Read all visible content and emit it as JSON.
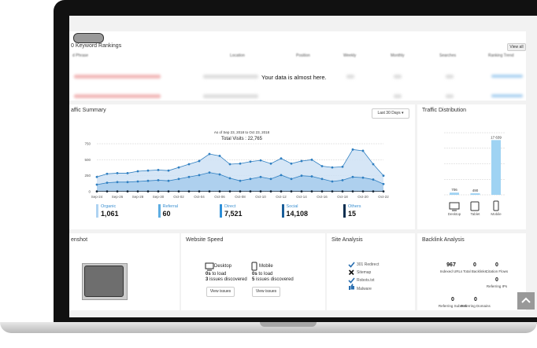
{
  "keyword_rankings": {
    "title": "0 Keyword Rankings",
    "view_all": "View all",
    "columns": [
      "d Phrase",
      "Location",
      "Position",
      "Weekly",
      "Monthly",
      "Searches",
      "Ranking Trend"
    ],
    "message": "Your data is almost here."
  },
  "traffic_summary": {
    "title": "affic Summary",
    "range": "Last 30 Days",
    "chart": {
      "type": "area",
      "subtitle": "As of Sep 23, 2018 to Oct 23, 2018",
      "title": "Total Visits : 22,765",
      "categories": [
        "Sep-24",
        null,
        "Sep-26",
        null,
        "Sep-28",
        null,
        "Sep-30",
        null,
        "Oct-02",
        null,
        "Oct-04",
        null,
        "Oct-06",
        null,
        "Oct-08",
        null,
        "Oct-10",
        null,
        "Oct-12",
        null,
        "Oct-14",
        null,
        "Oct-16",
        null,
        "Oct-18",
        null,
        "Oct-20",
        null,
        "Oct-22"
      ],
      "series": [
        {
          "color": "#2f7fc1",
          "values": [
            230,
            280,
            290,
            290,
            320,
            330,
            340,
            330,
            380,
            430,
            480,
            590,
            560,
            430,
            440,
            470,
            490,
            440,
            520,
            440,
            480,
            500,
            400,
            380,
            390,
            660,
            640,
            430,
            250
          ]
        },
        {
          "color": "#2f7fc1",
          "values": [
            110,
            140,
            150,
            150,
            160,
            170,
            180,
            170,
            200,
            230,
            260,
            300,
            270,
            210,
            170,
            200,
            230,
            200,
            260,
            200,
            250,
            240,
            200,
            160,
            180,
            230,
            220,
            190,
            120
          ]
        },
        {
          "color": "#1b2a3a",
          "values": [
            5,
            5,
            5,
            5,
            5,
            5,
            5,
            5,
            5,
            5,
            5,
            5,
            5,
            5,
            5,
            5,
            5,
            5,
            5,
            5,
            5,
            5,
            5,
            5,
            5,
            5,
            5,
            5,
            5
          ]
        }
      ],
      "ylim": [
        0,
        750
      ],
      "yticks": [
        0,
        250,
        500,
        750
      ],
      "grid": true
    },
    "legend": [
      {
        "name": "Organic",
        "value": "1,061",
        "color": "#aed3f2"
      },
      {
        "name": "Referral",
        "value": "60",
        "color": "#5dade2"
      },
      {
        "name": "Direct",
        "value": "7,521",
        "color": "#2d8fd8"
      },
      {
        "name": "Social",
        "value": "14,108",
        "color": "#1a5e99"
      },
      {
        "name": "Others",
        "value": "15",
        "color": "#0b2e4f"
      }
    ]
  },
  "traffic_distribution": {
    "title": "Traffic Distribution",
    "chart": {
      "type": "bar",
      "categories": [
        "Desktop",
        "Tablet",
        "Mobile"
      ],
      "values": [
        706,
        490,
        17639
      ],
      "value_labels": [
        "706",
        "490",
        "17 639"
      ],
      "color": "#9fd3f3",
      "ylim": [
        0,
        20000
      ],
      "yticks": [
        0,
        5000,
        10000,
        15000,
        20000
      ],
      "grid": true
    }
  },
  "screenshot": {
    "title": "enshot"
  },
  "website_speed": {
    "title": "Website Speed",
    "button": "View issues",
    "devices": [
      {
        "name": "Desktop",
        "load": "0s",
        "load_text": "to load",
        "issues": "3",
        "issues_text": "issues discovered"
      },
      {
        "name": "Mobile",
        "load": "0s",
        "load_text": "to load",
        "issues": "5",
        "issues_text": "issues discovered"
      }
    ]
  },
  "site_analysis": {
    "title": "Site Analysis",
    "items": [
      "301 Redirect",
      "Sitemap",
      "Robots.txt",
      "Malware"
    ]
  },
  "backlink_analysis": {
    "title": "Backlink Analysis",
    "metrics": [
      {
        "value": "967",
        "label": "Indexed URLs"
      },
      {
        "value": "0",
        "label": "Total Backlinks"
      },
      {
        "value": "0",
        "label": "Citation Flows"
      },
      {
        "value": "0",
        "label": "Referring IPs"
      },
      {
        "value": "0",
        "label": "Referring Subnets"
      },
      {
        "value": "0",
        "label": "Referring Domains"
      }
    ]
  }
}
